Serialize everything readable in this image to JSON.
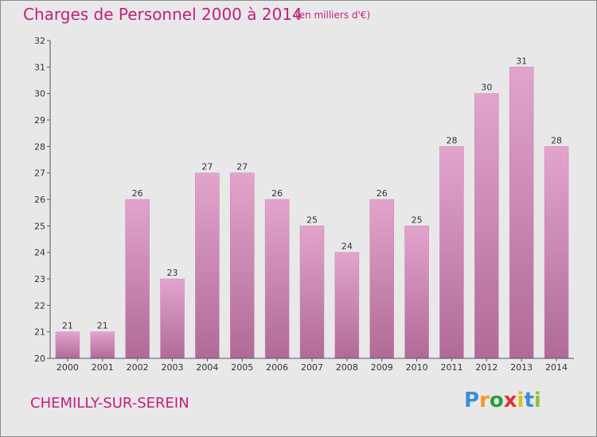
{
  "header": {
    "title": "Charges de Personnel 2000 à 2014",
    "subtitle": "(en milliers d'€)"
  },
  "footer": {
    "commune": "CHEMILLY-SUR-SEREIN",
    "logo": {
      "letters": [
        "P",
        "r",
        "o",
        "x",
        "i",
        "t",
        "i"
      ],
      "colors": [
        "#3a8fd6",
        "#f29a1e",
        "#2e9d3c",
        "#e0332f",
        "#d6c21e",
        "#3a8fd6",
        "#8fc23a"
      ]
    }
  },
  "colors": {
    "bar_top": "#e2a4cc",
    "bar_bottom": "#b06a96",
    "bar_edge": "#c785b0",
    "text_accent": "#c21f7b",
    "background": "#e8e8e8"
  },
  "chart_data": {
    "type": "bar",
    "title": "Charges de Personnel 2000 à 2014",
    "subtitle": "(en milliers d'€)",
    "categories": [
      "2000",
      "2001",
      "2002",
      "2003",
      "2004",
      "2005",
      "2006",
      "2007",
      "2008",
      "2009",
      "2010",
      "2011",
      "2012",
      "2013",
      "2014"
    ],
    "values": [
      21,
      21,
      26,
      23,
      27,
      27,
      26,
      25,
      24,
      26,
      25,
      28,
      30,
      31,
      28
    ],
    "ylim": [
      20,
      32
    ],
    "yticks": [
      20,
      21,
      22,
      23,
      24,
      25,
      26,
      27,
      28,
      29,
      30,
      31,
      32
    ],
    "grid": false,
    "legend": "none",
    "data_labels": true
  }
}
